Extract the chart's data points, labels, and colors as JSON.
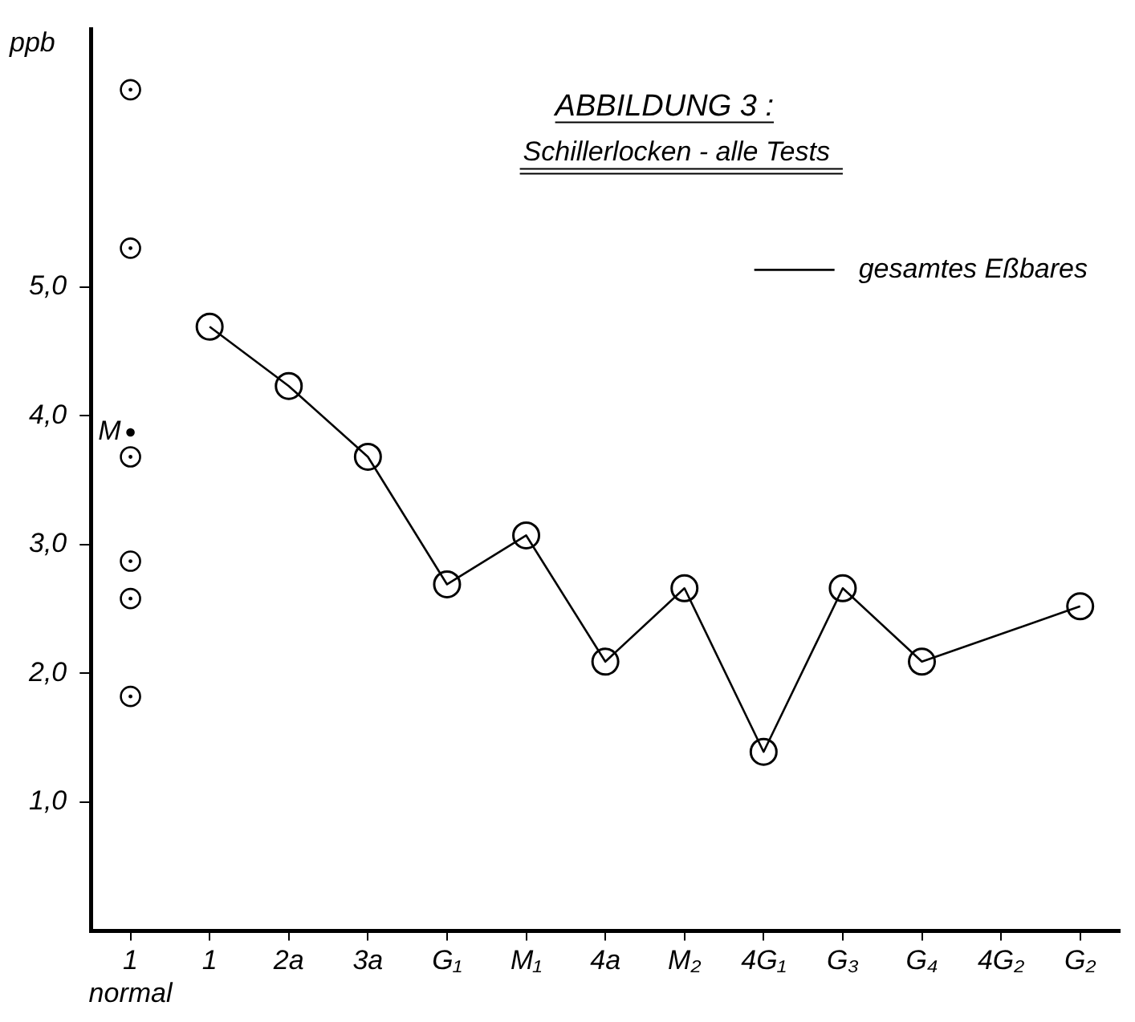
{
  "chart_data": {
    "type": "line",
    "title": "ABBILDUNG 3 :",
    "subtitle": "Schillerlocken - alle Tests",
    "ylabel": "ppb",
    "categories": [
      "1 normal",
      "1",
      "2a",
      "3a",
      "G₁",
      "M₁",
      "4a",
      "M₂",
      "4G₁",
      "G₃",
      "G₄",
      "4G₂",
      "G₂"
    ],
    "series": [
      {
        "name": "gesamtes Eßbares",
        "type": "line",
        "color": "#000000",
        "values": [
          null,
          4.69,
          4.23,
          3.68,
          2.69,
          3.07,
          2.09,
          2.66,
          1.39,
          2.66,
          2.09,
          null,
          2.52
        ]
      },
      {
        "type": "scatter",
        "color": "#000000",
        "x": [
          "1 normal",
          "1 normal",
          "1 normal",
          "1 normal",
          "1 normal",
          "1 normal"
        ],
        "values": [
          6.53,
          5.3,
          3.68,
          2.87,
          2.58,
          1.82
        ]
      },
      {
        "type": "scatter",
        "color": "#000000",
        "x": [
          "1 normal"
        ],
        "values": [
          3.87
        ]
      }
    ],
    "annotations": [
      {
        "text": "M",
        "x": "1 normal",
        "y": 3.87
      }
    ],
    "ylim": [
      0,
      7
    ],
    "yticks": [
      {
        "value": 1,
        "label": "1,0"
      },
      {
        "value": 2,
        "label": "2,0"
      },
      {
        "value": 3,
        "label": "3,0"
      },
      {
        "value": 4,
        "label": "4,0"
      },
      {
        "value": 5,
        "label": "5,0"
      }
    ],
    "grid": false,
    "legend": "top right",
    "marker": "circle"
  }
}
